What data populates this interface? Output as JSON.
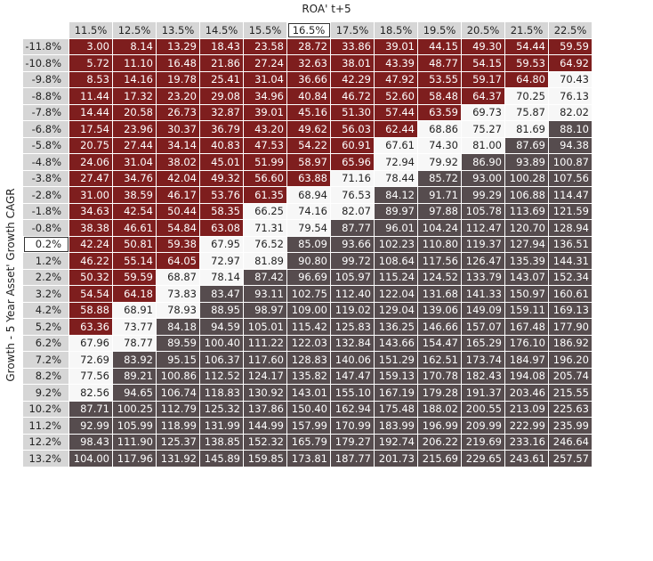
{
  "chart_data": {
    "type": "heatmap",
    "xlabel": "ROA' t+5",
    "ylabel": "Growth - 5 Year Asset' Growth CAGR",
    "highlight_column": "16.5%",
    "highlight_row": "0.2%",
    "columns": [
      "11.5%",
      "12.5%",
      "13.5%",
      "14.5%",
      "15.5%",
      "16.5%",
      "17.5%",
      "18.5%",
      "19.5%",
      "20.5%",
      "21.5%",
      "22.5%"
    ],
    "rows": [
      "-11.8%",
      "-10.8%",
      "-9.8%",
      "-8.8%",
      "-7.8%",
      "-6.8%",
      "-5.8%",
      "-4.8%",
      "-3.8%",
      "-2.8%",
      "-1.8%",
      "-0.8%",
      "0.2%",
      "1.2%",
      "2.2%",
      "3.2%",
      "4.2%",
      "5.2%",
      "6.2%",
      "7.2%",
      "8.2%",
      "9.2%",
      "10.2%",
      "11.2%",
      "12.2%",
      "13.2%"
    ],
    "values": [
      [
        "3.00",
        "8.14",
        "13.29",
        "18.43",
        "23.58",
        "28.72",
        "33.86",
        "39.01",
        "44.15",
        "49.30",
        "54.44",
        "59.59"
      ],
      [
        "5.72",
        "11.10",
        "16.48",
        "21.86",
        "27.24",
        "32.63",
        "38.01",
        "43.39",
        "48.77",
        "54.15",
        "59.53",
        "64.92"
      ],
      [
        "8.53",
        "14.16",
        "19.78",
        "25.41",
        "31.04",
        "36.66",
        "42.29",
        "47.92",
        "53.55",
        "59.17",
        "64.80",
        "70.43"
      ],
      [
        "11.44",
        "17.32",
        "23.20",
        "29.08",
        "34.96",
        "40.84",
        "46.72",
        "52.60",
        "58.48",
        "64.37",
        "70.25",
        "76.13"
      ],
      [
        "14.44",
        "20.58",
        "26.73",
        "32.87",
        "39.01",
        "45.16",
        "51.30",
        "57.44",
        "63.59",
        "69.73",
        "75.87",
        "82.02"
      ],
      [
        "17.54",
        "23.96",
        "30.37",
        "36.79",
        "43.20",
        "49.62",
        "56.03",
        "62.44",
        "68.86",
        "75.27",
        "81.69",
        "88.10"
      ],
      [
        "20.75",
        "27.44",
        "34.14",
        "40.83",
        "47.53",
        "54.22",
        "60.91",
        "67.61",
        "74.30",
        "81.00",
        "87.69",
        "94.38"
      ],
      [
        "24.06",
        "31.04",
        "38.02",
        "45.01",
        "51.99",
        "58.97",
        "65.96",
        "72.94",
        "79.92",
        "86.90",
        "93.89",
        "100.87"
      ],
      [
        "27.47",
        "34.76",
        "42.04",
        "49.32",
        "56.60",
        "63.88",
        "71.16",
        "78.44",
        "85.72",
        "93.00",
        "100.28",
        "107.56"
      ],
      [
        "31.00",
        "38.59",
        "46.17",
        "53.76",
        "61.35",
        "68.94",
        "76.53",
        "84.12",
        "91.71",
        "99.29",
        "106.88",
        "114.47"
      ],
      [
        "34.63",
        "42.54",
        "50.44",
        "58.35",
        "66.25",
        "74.16",
        "82.07",
        "89.97",
        "97.88",
        "105.78",
        "113.69",
        "121.59"
      ],
      [
        "38.38",
        "46.61",
        "54.84",
        "63.08",
        "71.31",
        "79.54",
        "87.77",
        "96.01",
        "104.24",
        "112.47",
        "120.70",
        "128.94"
      ],
      [
        "42.24",
        "50.81",
        "59.38",
        "67.95",
        "76.52",
        "85.09",
        "93.66",
        "102.23",
        "110.80",
        "119.37",
        "127.94",
        "136.51"
      ],
      [
        "46.22",
        "55.14",
        "64.05",
        "72.97",
        "81.89",
        "90.80",
        "99.72",
        "108.64",
        "117.56",
        "126.47",
        "135.39",
        "144.31"
      ],
      [
        "50.32",
        "59.59",
        "68.87",
        "78.14",
        "87.42",
        "96.69",
        "105.97",
        "115.24",
        "124.52",
        "133.79",
        "143.07",
        "152.34"
      ],
      [
        "54.54",
        "64.18",
        "73.83",
        "83.47",
        "93.11",
        "102.75",
        "112.40",
        "122.04",
        "131.68",
        "141.33",
        "150.97",
        "160.61"
      ],
      [
        "58.88",
        "68.91",
        "78.93",
        "88.95",
        "98.97",
        "109.00",
        "119.02",
        "129.04",
        "139.06",
        "149.09",
        "159.11",
        "169.13"
      ],
      [
        "63.36",
        "73.77",
        "84.18",
        "94.59",
        "105.01",
        "115.42",
        "125.83",
        "136.25",
        "146.66",
        "157.07",
        "167.48",
        "177.90"
      ],
      [
        "67.96",
        "78.77",
        "89.59",
        "100.40",
        "111.22",
        "122.03",
        "132.84",
        "143.66",
        "154.47",
        "165.29",
        "176.10",
        "186.92"
      ],
      [
        "72.69",
        "83.92",
        "95.15",
        "106.37",
        "117.60",
        "128.83",
        "140.06",
        "151.29",
        "162.51",
        "173.74",
        "184.97",
        "196.20"
      ],
      [
        "77.56",
        "89.21",
        "100.86",
        "112.52",
        "124.17",
        "135.82",
        "147.47",
        "159.13",
        "170.78",
        "182.43",
        "194.08",
        "205.74"
      ],
      [
        "82.56",
        "94.65",
        "106.74",
        "118.83",
        "130.92",
        "143.01",
        "155.10",
        "167.19",
        "179.28",
        "191.37",
        "203.46",
        "215.55"
      ],
      [
        "87.71",
        "100.25",
        "112.79",
        "125.32",
        "137.86",
        "150.40",
        "162.94",
        "175.48",
        "188.02",
        "200.55",
        "213.09",
        "225.63"
      ],
      [
        "92.99",
        "105.99",
        "118.99",
        "131.99",
        "144.99",
        "157.99",
        "170.99",
        "183.99",
        "196.99",
        "209.99",
        "222.99",
        "235.99"
      ],
      [
        "98.43",
        "111.90",
        "125.37",
        "138.85",
        "152.32",
        "165.79",
        "179.27",
        "192.74",
        "206.22",
        "219.69",
        "233.16",
        "246.64"
      ],
      [
        "104.00",
        "117.96",
        "131.92",
        "145.89",
        "159.85",
        "173.81",
        "187.77",
        "201.73",
        "215.69",
        "229.65",
        "243.61",
        "257.57"
      ]
    ],
    "color_rule": {
      "below": 66,
      "below_color": "#7e1e1e",
      "between_color": "#f7f7f7",
      "above": 83,
      "above_color": "#564c4e"
    }
  }
}
